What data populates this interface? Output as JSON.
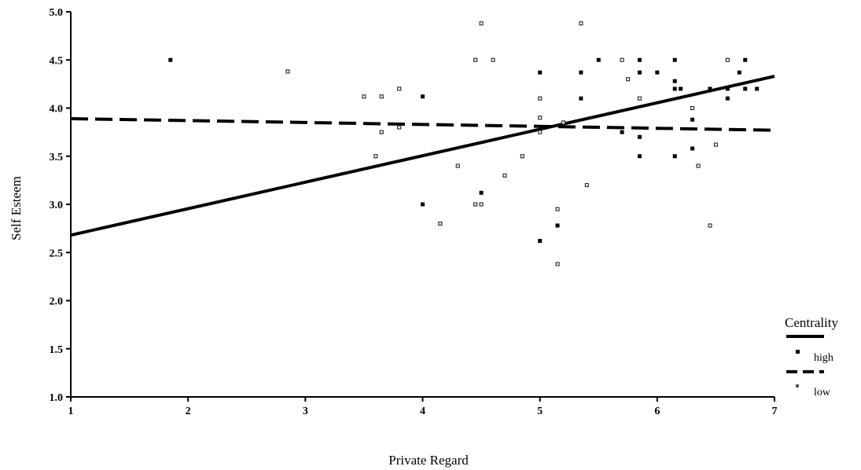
{
  "chart_data": {
    "type": "scatter",
    "title": "",
    "xlabel": "Private Regard",
    "ylabel": "Self Esteem",
    "xlim": [
      1,
      7
    ],
    "ylim": [
      1.0,
      5.0
    ],
    "x_ticks": [
      1,
      2,
      3,
      4,
      5,
      6,
      7
    ],
    "y_ticks": [
      1.0,
      1.5,
      2.0,
      2.5,
      3.0,
      3.5,
      4.0,
      4.5,
      5.0
    ],
    "x_tick_labels": [
      "1",
      "2",
      "3",
      "4",
      "5",
      "6",
      "7"
    ],
    "y_tick_labels": [
      "1.0",
      "1.5",
      "2.0",
      "2.5",
      "3.0",
      "3.5",
      "4.0",
      "4.5",
      "5.0"
    ],
    "grid": false,
    "legend": {
      "title": "Centrality",
      "position": "bottom-right",
      "entries": [
        {
          "label": "high",
          "line_style": "solid"
        },
        {
          "label": "low",
          "line_style": "dashed"
        }
      ]
    },
    "series": [
      {
        "name": "high",
        "line_style": "solid",
        "color": "#000000",
        "fit_line": [
          [
            1,
            2.68
          ],
          [
            7,
            4.33
          ]
        ],
        "points": [
          [
            1.85,
            4.5
          ],
          [
            4.0,
            4.12
          ],
          [
            4.0,
            3.0
          ],
          [
            4.5,
            3.12
          ],
          [
            5.0,
            4.37
          ],
          [
            5.0,
            2.62
          ],
          [
            5.15,
            2.78
          ],
          [
            5.35,
            4.37
          ],
          [
            5.35,
            4.1
          ],
          [
            5.5,
            4.5
          ],
          [
            5.85,
            4.5
          ],
          [
            5.85,
            4.37
          ],
          [
            5.85,
            3.5
          ],
          [
            5.85,
            3.7
          ],
          [
            6.0,
            4.37
          ],
          [
            6.15,
            4.5
          ],
          [
            6.15,
            4.28
          ],
          [
            6.15,
            4.2
          ],
          [
            6.2,
            4.2
          ],
          [
            6.15,
            3.5
          ],
          [
            6.3,
            3.88
          ],
          [
            6.3,
            3.58
          ],
          [
            6.45,
            4.2
          ],
          [
            6.6,
            4.2
          ],
          [
            6.6,
            4.1
          ],
          [
            6.7,
            4.37
          ],
          [
            6.75,
            4.5
          ],
          [
            6.75,
            4.2
          ],
          [
            6.85,
            4.2
          ],
          [
            5.7,
            3.75
          ]
        ]
      },
      {
        "name": "low",
        "line_style": "dashed",
        "color": "#000000",
        "fit_line": [
          [
            1,
            3.89
          ],
          [
            7,
            3.77
          ]
        ],
        "points": [
          [
            2.85,
            4.38
          ],
          [
            3.5,
            4.12
          ],
          [
            3.6,
            3.5
          ],
          [
            3.65,
            3.75
          ],
          [
            3.65,
            4.12
          ],
          [
            3.8,
            4.2
          ],
          [
            3.8,
            3.8
          ],
          [
            4.15,
            2.8
          ],
          [
            4.3,
            3.4
          ],
          [
            4.45,
            3.0
          ],
          [
            4.45,
            4.5
          ],
          [
            4.5,
            4.88
          ],
          [
            4.5,
            3.0
          ],
          [
            4.6,
            4.5
          ],
          [
            4.7,
            3.3
          ],
          [
            4.85,
            3.5
          ],
          [
            5.0,
            4.1
          ],
          [
            5.0,
            3.9
          ],
          [
            5.0,
            3.75
          ],
          [
            5.15,
            2.38
          ],
          [
            5.15,
            2.95
          ],
          [
            5.35,
            4.88
          ],
          [
            5.4,
            3.2
          ],
          [
            5.7,
            4.5
          ],
          [
            5.75,
            4.3
          ],
          [
            5.85,
            4.1
          ],
          [
            6.3,
            4.0
          ],
          [
            6.35,
            3.4
          ],
          [
            6.45,
            2.78
          ],
          [
            6.5,
            3.62
          ],
          [
            6.6,
            4.5
          ],
          [
            5.2,
            3.85
          ]
        ]
      }
    ]
  }
}
